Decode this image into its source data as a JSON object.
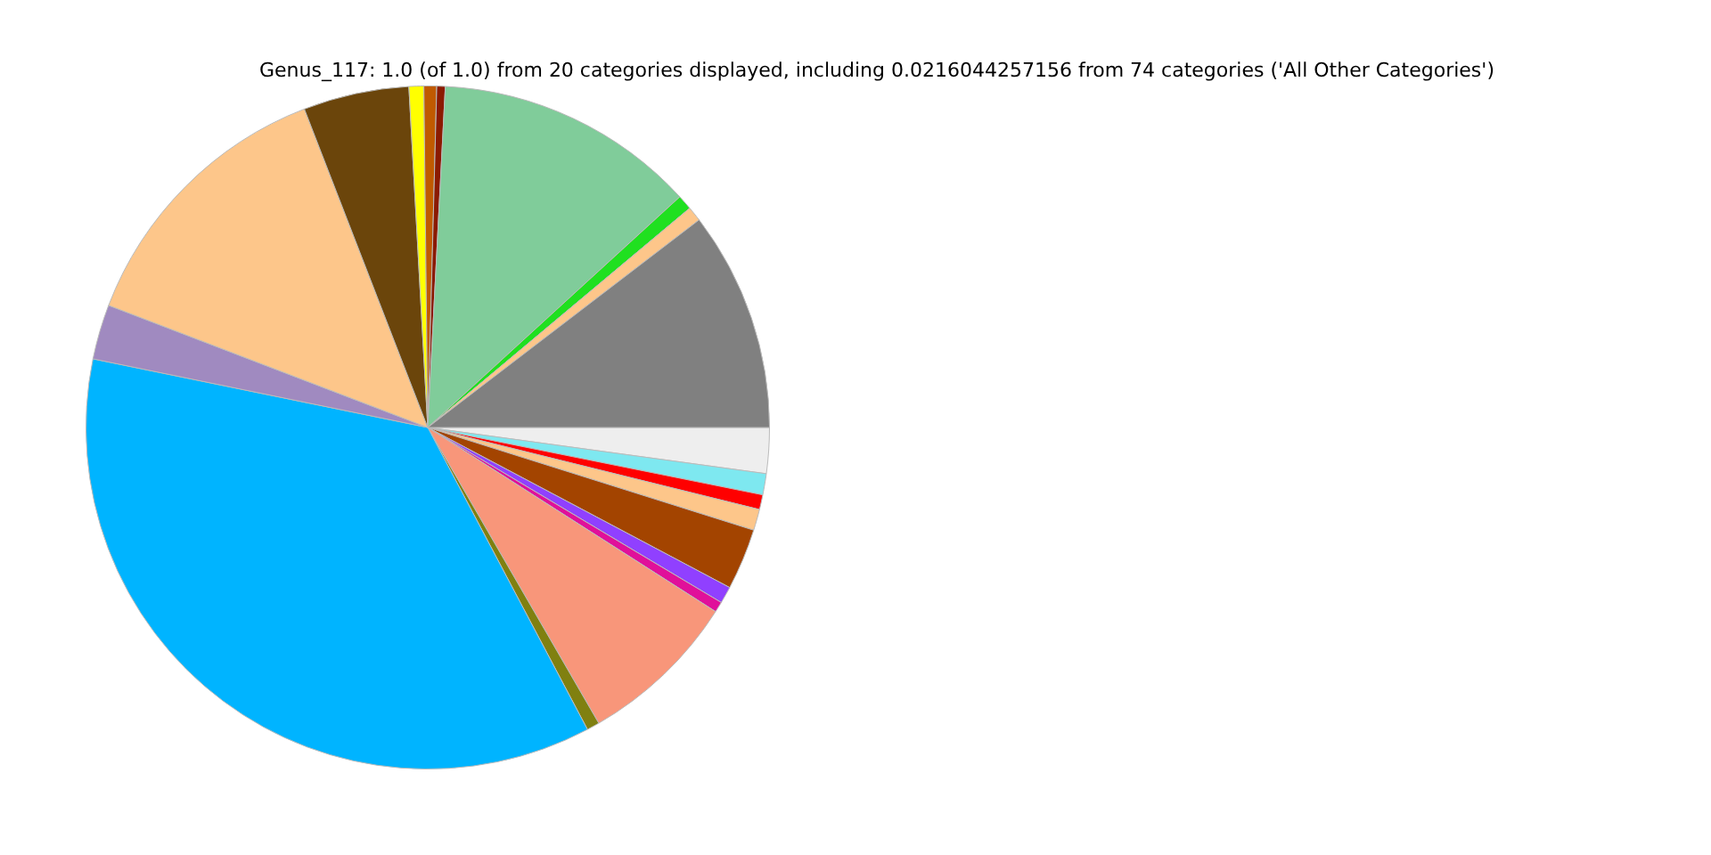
{
  "chart_data": {
    "type": "pie",
    "title": "Genus_117: 1.0 (of 1.0) from 20 categories displayed, including 0.0216044257156 from 74 categories ('All Other Categories')",
    "categories": [
      null,
      null,
      null,
      null,
      null,
      null,
      null,
      null,
      null,
      null,
      null,
      null,
      null,
      null,
      null,
      null,
      null,
      null,
      null,
      null
    ],
    "values": [
      2.16,
      1.0,
      0.7,
      1.0,
      2.9,
      0.8,
      0.5,
      7.6,
      0.6,
      35.96,
      2.6,
      13.3,
      5.0,
      0.7,
      0.6,
      0.4,
      12.38,
      0.7,
      0.7,
      10.4
    ],
    "colors": [
      "#eeeeee",
      "#7ee8f0",
      "#ff0000",
      "#fdc68a",
      "#a34400",
      "#9040ff",
      "#e0109a",
      "#f8967a",
      "#808010",
      "#00b4ff",
      "#a08ac0",
      "#fdc68a",
      "#6b450b",
      "#ffff00",
      "#c05a00",
      "#8b1a00",
      "#80cc9a",
      "#20e020",
      "#fdc68a",
      "#808080"
    ],
    "legend": false
  }
}
